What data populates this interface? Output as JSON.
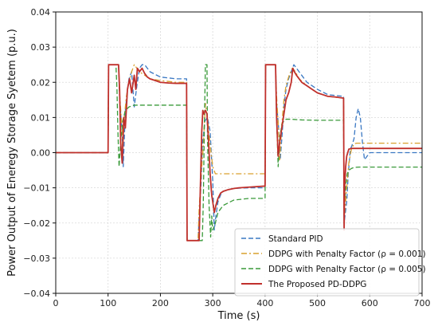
{
  "chart_data": {
    "type": "line",
    "title": "",
    "xlabel": "Time (s)",
    "ylabel": "Power Output of Eneregy Storage Syetem (p.u.)",
    "xlim": [
      0,
      700
    ],
    "ylim": [
      -0.04,
      0.04
    ],
    "xticks": [
      0,
      100,
      200,
      300,
      400,
      500,
      600,
      700
    ],
    "yticks": [
      -0.04,
      -0.03,
      -0.02,
      -0.01,
      0.0,
      0.01,
      0.02,
      0.03,
      0.04
    ],
    "xtick_labels": [
      "0",
      "100",
      "200",
      "300",
      "400",
      "500",
      "600",
      "700"
    ],
    "ytick_labels": [
      "−0.04",
      "−0.03",
      "−0.02",
      "−0.01",
      "0.00",
      "0.01",
      "0.02",
      "0.03",
      "0.04"
    ],
    "grid": true,
    "legend_position": "lower-right",
    "series": [
      {
        "name": "Standard PID",
        "color": "#3a78c3",
        "style": "dashed",
        "x": [
          0,
          100,
          101,
          120,
          122,
          127,
          129,
          131,
          133,
          137,
          140,
          145,
          150,
          155,
          160,
          165,
          170,
          175,
          180,
          200,
          230,
          250,
          251,
          272,
          274,
          278,
          280,
          285,
          290,
          295,
          300,
          303,
          306,
          310,
          315,
          320,
          330,
          340,
          350,
          370,
          400,
          401,
          420,
          422,
          427,
          429,
          433,
          436,
          440,
          445,
          450,
          455,
          460,
          470,
          480,
          500,
          520,
          550,
          551,
          556,
          559,
          563,
          566,
          570,
          574,
          578,
          582,
          586,
          590,
          595,
          600,
          610,
          620,
          640,
          660,
          680,
          700
        ],
        "y": [
          0,
          0,
          0.025,
          0.025,
          0.016,
          0.005,
          -0.004,
          0.004,
          0.012,
          0.018,
          0.021,
          0.023,
          0.013,
          0.019,
          0.024,
          0.025,
          0.025,
          0.024,
          0.023,
          0.0215,
          0.021,
          0.021,
          -0.025,
          -0.025,
          -0.018,
          -0.008,
          0.002,
          0.009,
          0.01,
          0.006,
          -0.008,
          -0.022,
          -0.018,
          -0.014,
          -0.012,
          -0.011,
          -0.0105,
          -0.0102,
          -0.0101,
          -0.01,
          -0.01,
          0.025,
          0.025,
          0.014,
          0.005,
          -0.002,
          0.006,
          0.013,
          0.018,
          0.021,
          0.023,
          0.025,
          0.024,
          0.022,
          0.02,
          0.018,
          0.0165,
          0.016,
          -0.02,
          -0.014,
          -0.006,
          0.001,
          0.002,
          0.004,
          0.01,
          0.0125,
          0.01,
          0.003,
          -0.002,
          -0.001,
          0.0,
          0.0,
          0.0,
          0.0,
          0.0,
          0.0,
          0.0
        ]
      },
      {
        "name": "DDPG with Penalty Factor (ρ = 0.001)",
        "color": "#d9a02e",
        "style": "dashdot",
        "x": [
          0,
          100,
          101,
          120,
          122,
          126,
          128,
          131,
          135,
          140,
          145,
          150,
          155,
          160,
          170,
          180,
          200,
          230,
          250,
          251,
          272,
          274,
          278,
          282,
          286,
          290,
          295,
          300,
          305,
          310,
          330,
          350,
          400,
          401,
          420,
          422,
          426,
          428,
          432,
          436,
          440,
          446,
          452,
          458,
          465,
          480,
          500,
          520,
          550,
          551,
          556,
          560,
          565,
          570,
          575,
          580,
          600,
          650,
          700
        ],
        "y": [
          0,
          0,
          0.025,
          0.025,
          0.017,
          0.008,
          0.001,
          0.01,
          0.016,
          0.02,
          0.023,
          0.025,
          0.024,
          0.023,
          0.022,
          0.021,
          0.0205,
          0.02,
          0.02,
          -0.025,
          -0.025,
          -0.016,
          -0.006,
          0.002,
          0.014,
          0.01,
          0.002,
          -0.004,
          -0.006,
          -0.006,
          -0.006,
          -0.006,
          -0.006,
          0.025,
          0.025,
          0.016,
          0.006,
          -0.002,
          0.008,
          0.015,
          0.019,
          0.022,
          0.024,
          0.023,
          0.021,
          0.019,
          0.017,
          0.016,
          0.0155,
          -0.019,
          -0.01,
          -0.003,
          0.001,
          0.0025,
          0.0027,
          0.0027,
          0.0027,
          0.0027,
          0.0027
        ]
      },
      {
        "name": "DDPG with Penalty Factor (ρ = 0.005)",
        "color": "#3a9a3a",
        "style": "dashed",
        "x": [
          0,
          100,
          101,
          115,
          117,
          119,
          121,
          124,
          128,
          133,
          140,
          150,
          200,
          250,
          251,
          280,
          282,
          284,
          286,
          287,
          289,
          290,
          293,
          296,
          298,
          300,
          305,
          310,
          320,
          340,
          370,
          400,
          401,
          420,
          422,
          425,
          428,
          432,
          436,
          440,
          450,
          470,
          500,
          520,
          550,
          551,
          554,
          557,
          560,
          565,
          570,
          580,
          600,
          650,
          700
        ],
        "y": [
          0,
          0,
          0.025,
          0.025,
          0.018,
          0.005,
          -0.004,
          0.003,
          0.009,
          0.012,
          0.013,
          0.0135,
          0.0135,
          0.0135,
          -0.025,
          -0.025,
          -0.014,
          0.008,
          0.025,
          0.025,
          0.025,
          0.004,
          -0.015,
          -0.024,
          -0.018,
          -0.022,
          -0.02,
          -0.017,
          -0.015,
          -0.0135,
          -0.013,
          -0.013,
          0.025,
          0.025,
          0.01,
          -0.004,
          0.004,
          0.008,
          0.009,
          0.0095,
          0.0095,
          0.0093,
          0.0092,
          0.0092,
          0.0092,
          -0.016,
          -0.01,
          -0.006,
          -0.005,
          -0.0045,
          -0.0042,
          -0.0041,
          -0.0041,
          -0.0041,
          -0.0041
        ]
      },
      {
        "name": "The Proposed PD-DDPG",
        "color": "#c0302c",
        "style": "solid",
        "x": [
          0,
          100,
          101,
          120,
          122,
          124,
          127,
          130,
          133,
          137,
          141,
          145,
          150,
          153,
          156,
          160,
          165,
          170,
          175,
          180,
          190,
          200,
          215,
          230,
          250,
          251,
          274,
          276,
          279,
          281,
          283,
          286,
          289,
          292,
          295,
          298,
          300,
          303,
          306,
          310,
          315,
          320,
          330,
          340,
          350,
          370,
          400,
          401,
          420,
          422,
          425,
          428,
          431,
          435,
          440,
          445,
          450,
          453,
          456,
          460,
          465,
          470,
          480,
          490,
          500,
          510,
          520,
          535,
          550,
          551,
          552,
          554,
          556,
          558,
          560,
          565,
          570,
          580,
          600,
          650,
          700
        ],
        "y": [
          0,
          0,
          0.025,
          0.025,
          0.018,
          0.003,
          -0.003,
          0.01,
          0.007,
          0.018,
          0.021,
          0.017,
          0.022,
          0.018,
          0.024,
          0.023,
          0.024,
          0.0225,
          0.0215,
          0.021,
          0.0205,
          0.02,
          0.0198,
          0.0197,
          0.0197,
          -0.025,
          -0.025,
          -0.012,
          0.006,
          0.012,
          0.011,
          0.012,
          0.011,
          0.003,
          -0.006,
          -0.012,
          -0.014,
          -0.017,
          -0.015,
          -0.013,
          -0.0115,
          -0.011,
          -0.0105,
          -0.0102,
          -0.01,
          -0.0098,
          -0.0095,
          0.025,
          0.025,
          0.01,
          -0.001,
          0.003,
          0.006,
          0.01,
          0.015,
          0.017,
          0.02,
          0.024,
          0.023,
          0.022,
          0.021,
          0.02,
          0.019,
          0.018,
          0.017,
          0.0165,
          0.016,
          0.0158,
          0.0155,
          -0.022,
          -0.01,
          -0.004,
          -0.001,
          0.0,
          0.001,
          0.0012,
          0.0012,
          0.0012,
          0.0012,
          0.0012,
          0.0012
        ]
      }
    ]
  }
}
